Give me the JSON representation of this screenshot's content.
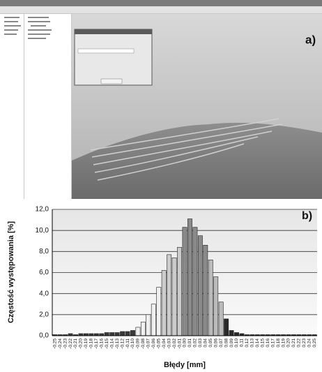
{
  "screenshot": {
    "label": "a)"
  },
  "chart_data": {
    "type": "bar",
    "panel_label": "b)",
    "x_label": "Błędy [mm]",
    "y_label": "Częstość występowania [%]",
    "categories": [
      "-0,25",
      "-0,24",
      "-0,23",
      "-0,22",
      "-0,21",
      "-0,20",
      "-0,19",
      "-0,18",
      "-0,17",
      "-0,16",
      "-0,15",
      "-0,14",
      "-0,13",
      "-0,12",
      "-0,11",
      "-0,10",
      "-0,09",
      "-0,08",
      "-0,07",
      "-0,06",
      "-0,05",
      "-0,04",
      "-0,03",
      "-0,02",
      "-0,01",
      "0,00",
      "0,01",
      "0,02",
      "0,03",
      "0,04",
      "0,05",
      "0,06",
      "0,07",
      "0,08",
      "0,09",
      "0,10",
      "0,11",
      "0,12",
      "0,13",
      "0,14",
      "0,15",
      "0,16",
      "0,17",
      "0,18",
      "0,19",
      "0,20",
      "0,21",
      "0,22",
      "0,23",
      "0,24",
      "0,25"
    ],
    "values": [
      0.1,
      0.1,
      0.1,
      0.2,
      0.1,
      0.2,
      0.2,
      0.2,
      0.2,
      0.2,
      0.3,
      0.3,
      0.3,
      0.4,
      0.4,
      0.5,
      0.8,
      1.3,
      2.0,
      3.0,
      4.6,
      6.2,
      7.7,
      7.4,
      8.4,
      10.3,
      11.1,
      10.3,
      9.5,
      8.6,
      7.2,
      5.6,
      3.2,
      1.6,
      0.5,
      0.3,
      0.2,
      0.1,
      0.1,
      0.1,
      0.1,
      0.1,
      0.1,
      0.1,
      0.1,
      0.1,
      0.1,
      0.1,
      0.1,
      0.1,
      0.1
    ],
    "colors": [
      "#3a3a3a",
      "#3a3a3a",
      "#3a3a3a",
      "#3a3a3a",
      "#3a3a3a",
      "#3a3a3a",
      "#3a3a3a",
      "#3a3a3a",
      "#3a3a3a",
      "#3a3a3a",
      "#3a3a3a",
      "#3a3a3a",
      "#3a3a3a",
      "#3a3a3a",
      "#3a3a3a",
      "#3a3a3a",
      "#f0f0f0",
      "#f0f0f0",
      "#f0f0f0",
      "#f0f0f0",
      "#f0f0f0",
      "#cccccc",
      "#cccccc",
      "#cccccc",
      "#cccccc",
      "#8a8a8a",
      "#8a8a8a",
      "#8a8a8a",
      "#8a8a8a",
      "#8a8a8a",
      "#bbbbbb",
      "#bbbbbb",
      "#bbbbbb",
      "#2a2a2a",
      "#2a2a2a",
      "#2a2a2a",
      "#2a2a2a",
      "#2a2a2a",
      "#2a2a2a",
      "#2a2a2a",
      "#2a2a2a",
      "#2a2a2a",
      "#2a2a2a",
      "#2a2a2a",
      "#2a2a2a",
      "#2a2a2a",
      "#2a2a2a",
      "#2a2a2a",
      "#2a2a2a",
      "#2a2a2a",
      "#2a2a2a"
    ],
    "ylim": [
      0,
      12
    ],
    "yticks": [
      {
        "value": 0,
        "label": "0,0"
      },
      {
        "value": 2,
        "label": "2,0"
      },
      {
        "value": 4,
        "label": "4,0"
      },
      {
        "value": 6,
        "label": "6,0"
      },
      {
        "value": 8,
        "label": "8,0"
      },
      {
        "value": 10,
        "label": "10,0"
      },
      {
        "value": 12,
        "label": "12,0"
      }
    ],
    "grid": true
  }
}
